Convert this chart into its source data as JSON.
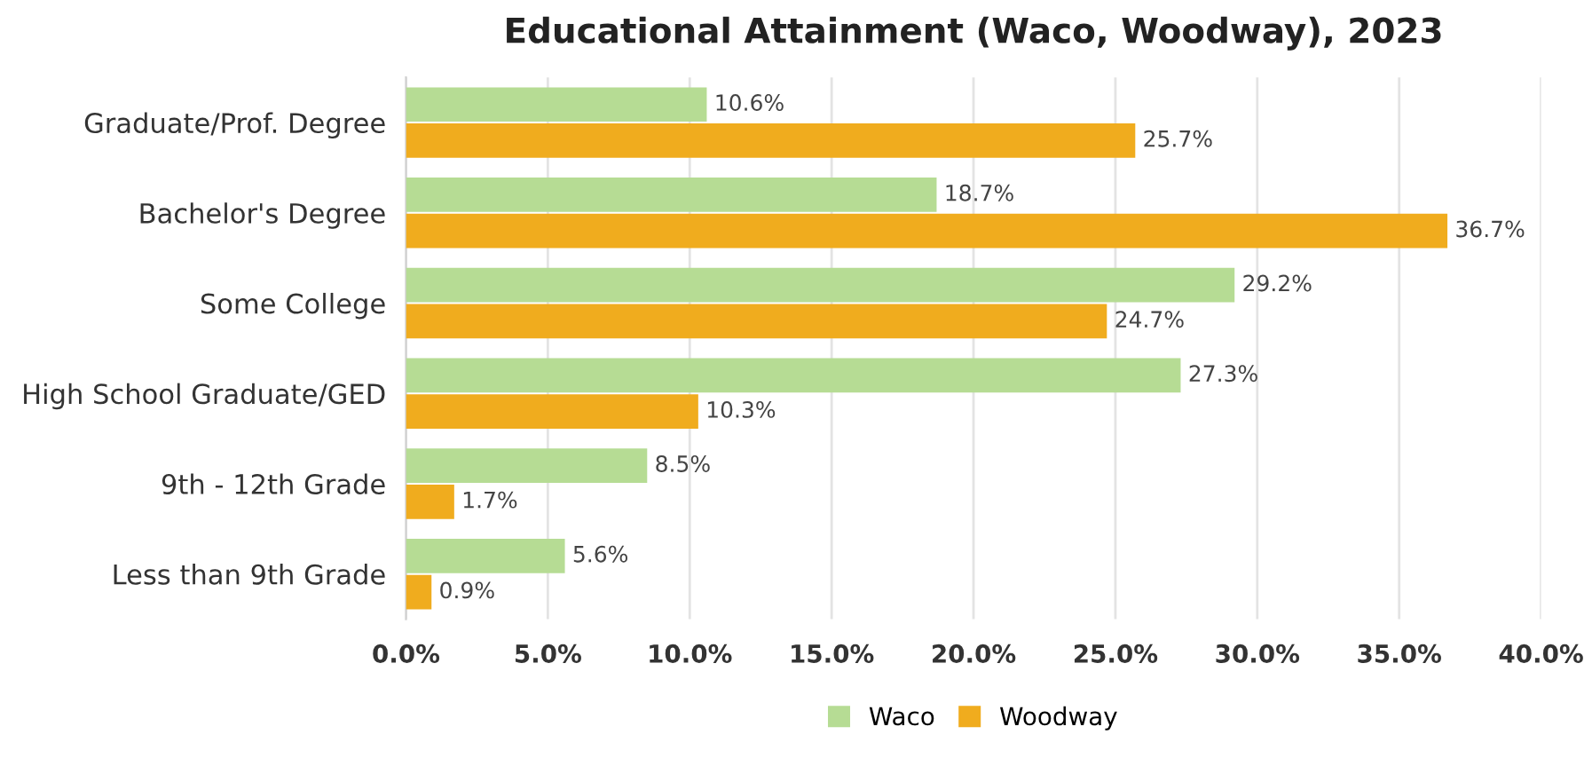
{
  "chart_data": {
    "type": "bar",
    "orientation": "horizontal",
    "title": "Educational Attainment (Waco, Woodway), 2023",
    "categories": [
      "Graduate/Prof. Degree",
      "Bachelor's Degree",
      "Some College",
      "High School Graduate/GED",
      "9th - 12th Grade",
      "Less than 9th Grade"
    ],
    "series": [
      {
        "name": "Waco",
        "color": "#b6dc94",
        "values": [
          10.6,
          18.7,
          29.2,
          27.3,
          8.5,
          5.6
        ],
        "value_labels": [
          "10.6%",
          "18.7%",
          "29.2%",
          "27.3%",
          "8.5%",
          "5.6%"
        ]
      },
      {
        "name": "Woodway",
        "color": "#f0ac1e",
        "values": [
          25.7,
          36.7,
          24.7,
          10.3,
          1.7,
          0.9
        ],
        "value_labels": [
          "25.7%",
          "36.7%",
          "24.7%",
          "10.3%",
          "1.7%",
          "0.9%"
        ]
      }
    ],
    "xlim": [
      0,
      40
    ],
    "xticks": [
      {
        "value": 0,
        "label": "0.0%"
      },
      {
        "value": 5,
        "label": "5.0%"
      },
      {
        "value": 10,
        "label": "10.0%"
      },
      {
        "value": 15,
        "label": "15.0%"
      },
      {
        "value": 20,
        "label": "20.0%"
      },
      {
        "value": 25,
        "label": "25.0%"
      },
      {
        "value": 30,
        "label": "30.0%"
      },
      {
        "value": 35,
        "label": "35.0%"
      },
      {
        "value": 40,
        "label": "40.0%"
      }
    ],
    "grid": "x",
    "legend": "bottom"
  }
}
